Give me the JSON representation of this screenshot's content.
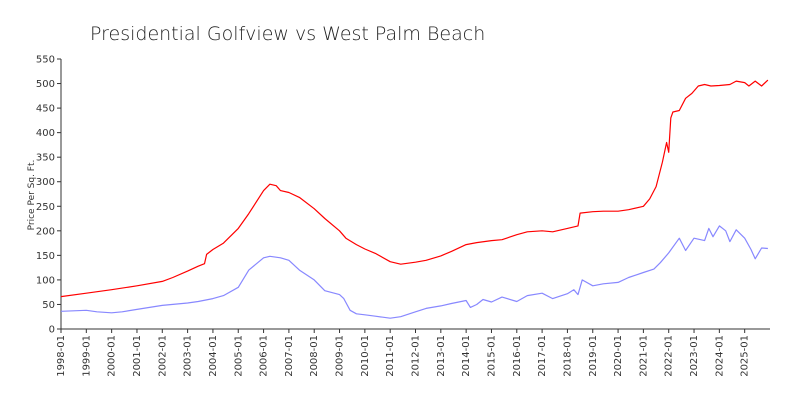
{
  "chart_data": {
    "type": "line",
    "title": "Presidential Golfview vs West Palm Beach",
    "xlabel": "",
    "ylabel": "Price Per Sq. Ft.",
    "ylim": [
      0,
      550
    ],
    "yticks": [
      0,
      50,
      100,
      150,
      200,
      250,
      300,
      350,
      400,
      450,
      500,
      550
    ],
    "xlim": [
      "1998-01",
      "2026-01"
    ],
    "xticks": [
      "1998-01",
      "1999-01",
      "2000-01",
      "2001-01",
      "2002-01",
      "2003-01",
      "2004-01",
      "2005-01",
      "2006-01",
      "2007-01",
      "2008-01",
      "2009-01",
      "2010-01",
      "2011-01",
      "2012-01",
      "2013-01",
      "2014-01",
      "2015-01",
      "2016-01",
      "2017-01",
      "2018-01",
      "2019-01",
      "2020-01",
      "2021-01",
      "2022-01",
      "2023-01",
      "2024-01",
      "2025-01"
    ],
    "grid": false,
    "legend": "none",
    "series": [
      {
        "color": "#ff0000",
        "points": [
          [
            "1998-01",
            66
          ],
          [
            "1999-01",
            73
          ],
          [
            "2000-01",
            80
          ],
          [
            "2001-01",
            88
          ],
          [
            "2002-01",
            97
          ],
          [
            "2002-06",
            105
          ],
          [
            "2003-01",
            118
          ],
          [
            "2003-06",
            128
          ],
          [
            "2003-09",
            133
          ],
          [
            "2003-10",
            152
          ],
          [
            "2004-01",
            162
          ],
          [
            "2004-06",
            175
          ],
          [
            "2005-01",
            205
          ],
          [
            "2005-06",
            235
          ],
          [
            "2006-01",
            282
          ],
          [
            "2006-04",
            295
          ],
          [
            "2006-07",
            292
          ],
          [
            "2006-09",
            282
          ],
          [
            "2007-01",
            278
          ],
          [
            "2007-06",
            268
          ],
          [
            "2008-01",
            245
          ],
          [
            "2008-06",
            225
          ],
          [
            "2009-01",
            200
          ],
          [
            "2009-04",
            185
          ],
          [
            "2009-09",
            172
          ],
          [
            "2010-01",
            163
          ],
          [
            "2010-06",
            154
          ],
          [
            "2011-01",
            137
          ],
          [
            "2011-06",
            132
          ],
          [
            "2012-01",
            136
          ],
          [
            "2012-06",
            140
          ],
          [
            "2013-01",
            149
          ],
          [
            "2013-06",
            158
          ],
          [
            "2014-01",
            172
          ],
          [
            "2014-06",
            176
          ],
          [
            "2015-01",
            180
          ],
          [
            "2015-06",
            182
          ],
          [
            "2016-01",
            192
          ],
          [
            "2016-06",
            198
          ],
          [
            "2017-01",
            200
          ],
          [
            "2017-06",
            198
          ],
          [
            "2018-01",
            205
          ],
          [
            "2018-06",
            210
          ],
          [
            "2018-07",
            236
          ],
          [
            "2019-01",
            239
          ],
          [
            "2019-06",
            240
          ],
          [
            "2020-01",
            240
          ],
          [
            "2020-06",
            243
          ],
          [
            "2021-01",
            250
          ],
          [
            "2021-04",
            265
          ],
          [
            "2021-07",
            290
          ],
          [
            "2021-10",
            340
          ],
          [
            "2021-12",
            380
          ],
          [
            "2022-01",
            360
          ],
          [
            "2022-02",
            430
          ],
          [
            "2022-03",
            442
          ],
          [
            "2022-06",
            445
          ],
          [
            "2022-09",
            470
          ],
          [
            "2022-12",
            480
          ],
          [
            "2023-03",
            495
          ],
          [
            "2023-06",
            498
          ],
          [
            "2023-09",
            495
          ],
          [
            "2024-01",
            496
          ],
          [
            "2024-06",
            498
          ],
          [
            "2024-09",
            505
          ],
          [
            "2025-01",
            502
          ],
          [
            "2025-03",
            495
          ],
          [
            "2025-06",
            505
          ],
          [
            "2025-09",
            495
          ],
          [
            "2025-12",
            507
          ]
        ]
      },
      {
        "color": "#8888ff",
        "points": [
          [
            "1998-01",
            36
          ],
          [
            "1999-01",
            38
          ],
          [
            "1999-06",
            35
          ],
          [
            "2000-01",
            33
          ],
          [
            "2000-06",
            35
          ],
          [
            "2001-01",
            40
          ],
          [
            "2002-01",
            48
          ],
          [
            "2003-01",
            53
          ],
          [
            "2003-06",
            56
          ],
          [
            "2004-01",
            62
          ],
          [
            "2004-06",
            68
          ],
          [
            "2005-01",
            85
          ],
          [
            "2005-06",
            120
          ],
          [
            "2006-01",
            145
          ],
          [
            "2006-04",
            148
          ],
          [
            "2006-09",
            145
          ],
          [
            "2007-01",
            140
          ],
          [
            "2007-06",
            120
          ],
          [
            "2008-01",
            100
          ],
          [
            "2008-06",
            78
          ],
          [
            "2009-01",
            70
          ],
          [
            "2009-03",
            62
          ],
          [
            "2009-06",
            38
          ],
          [
            "2009-09",
            31
          ],
          [
            "2010-01",
            29
          ],
          [
            "2010-06",
            26
          ],
          [
            "2011-01",
            22
          ],
          [
            "2011-06",
            25
          ],
          [
            "2012-01",
            35
          ],
          [
            "2012-06",
            42
          ],
          [
            "2013-01",
            47
          ],
          [
            "2013-06",
            52
          ],
          [
            "2014-01",
            58
          ],
          [
            "2014-03",
            44
          ],
          [
            "2014-06",
            50
          ],
          [
            "2014-09",
            60
          ],
          [
            "2015-01",
            55
          ],
          [
            "2015-06",
            65
          ],
          [
            "2016-01",
            56
          ],
          [
            "2016-06",
            68
          ],
          [
            "2017-01",
            73
          ],
          [
            "2017-06",
            62
          ],
          [
            "2018-01",
            72
          ],
          [
            "2018-04",
            80
          ],
          [
            "2018-06",
            70
          ],
          [
            "2018-08",
            100
          ],
          [
            "2019-01",
            88
          ],
          [
            "2019-06",
            92
          ],
          [
            "2020-01",
            95
          ],
          [
            "2020-06",
            105
          ],
          [
            "2021-01",
            115
          ],
          [
            "2021-06",
            122
          ],
          [
            "2021-09",
            135
          ],
          [
            "2022-01",
            155
          ],
          [
            "2022-06",
            185
          ],
          [
            "2022-09",
            160
          ],
          [
            "2023-01",
            185
          ],
          [
            "2023-06",
            180
          ],
          [
            "2023-08",
            205
          ],
          [
            "2023-10",
            188
          ],
          [
            "2024-01",
            210
          ],
          [
            "2024-04",
            200
          ],
          [
            "2024-06",
            178
          ],
          [
            "2024-09",
            202
          ],
          [
            "2025-01",
            185
          ],
          [
            "2025-04",
            162
          ],
          [
            "2025-06",
            143
          ],
          [
            "2025-09",
            165
          ],
          [
            "2025-12",
            164
          ]
        ]
      }
    ]
  }
}
